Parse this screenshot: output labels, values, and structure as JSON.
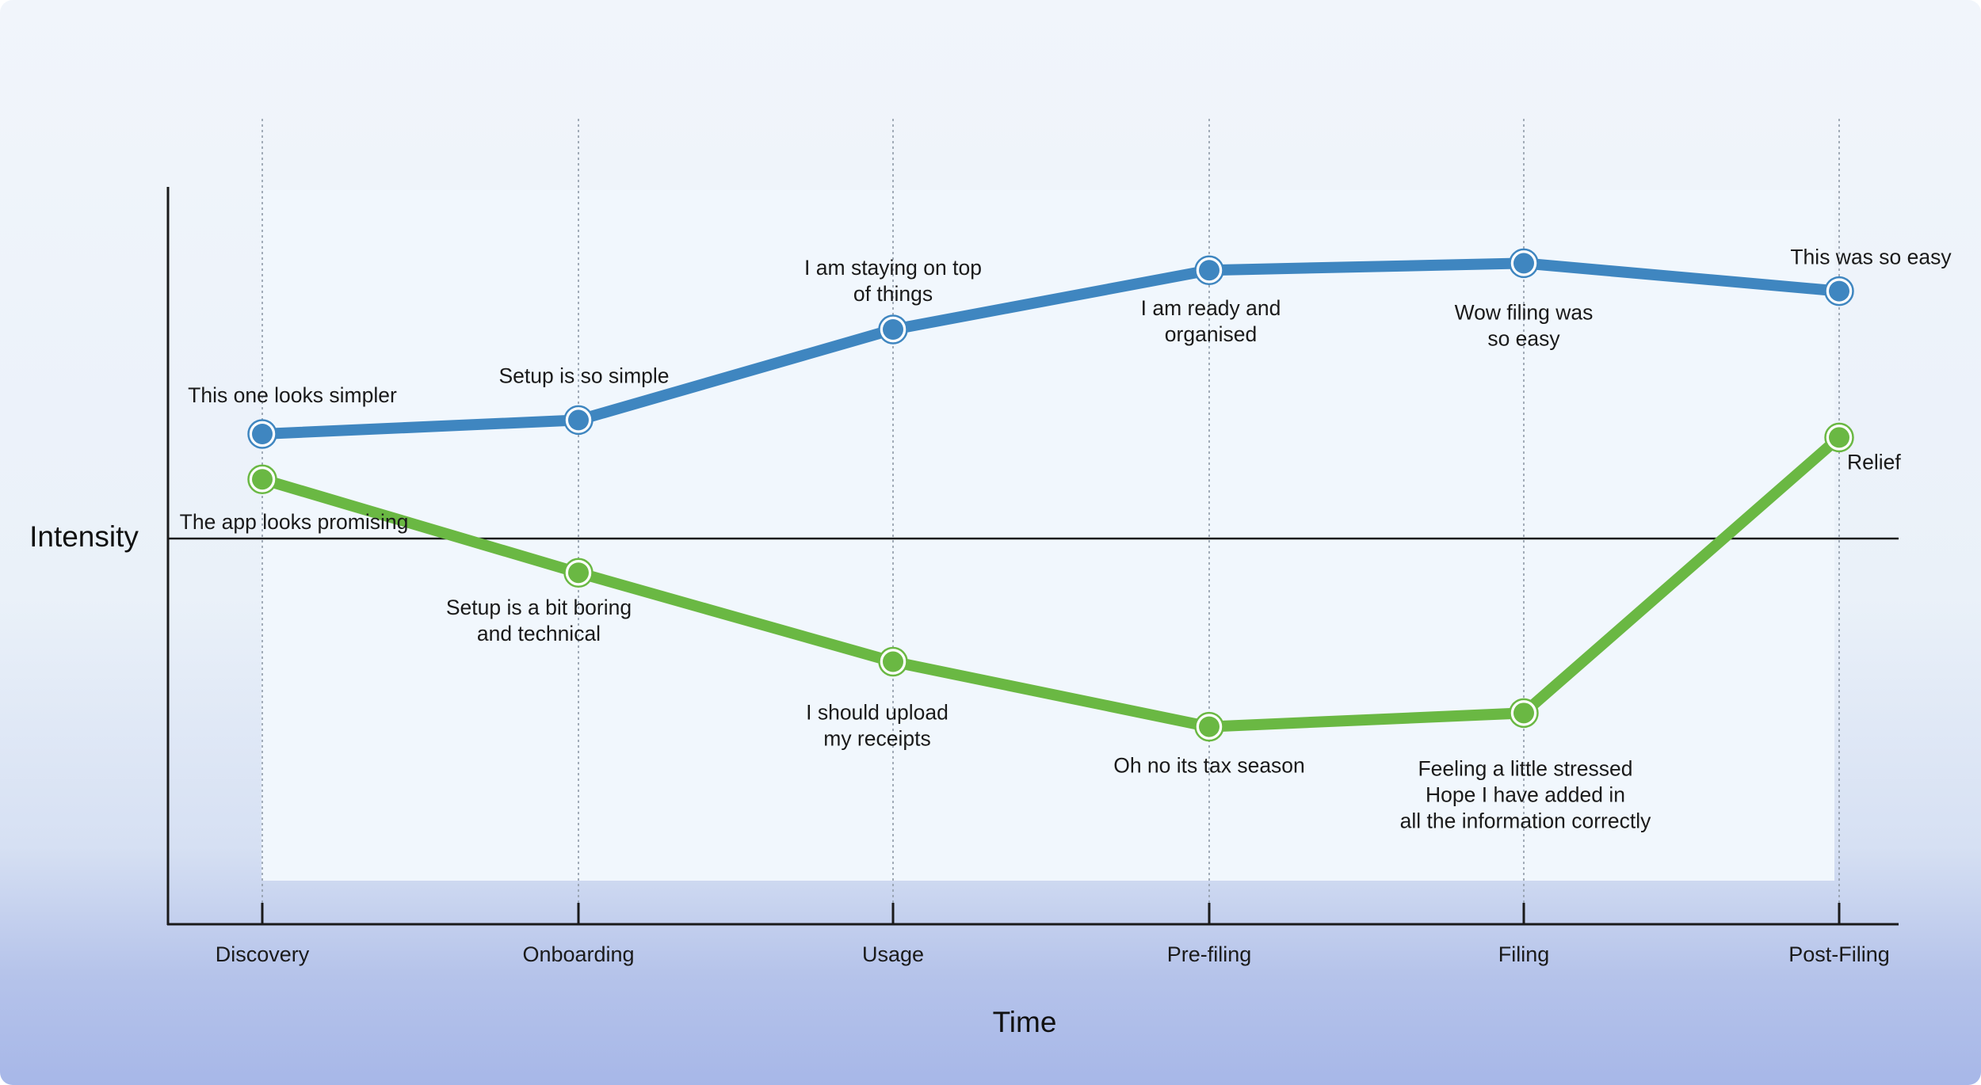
{
  "chart_data": {
    "type": "line",
    "title": "",
    "xlabel": "Time",
    "ylabel": "Intensity",
    "categories": [
      "Discovery",
      "Onboarding",
      "Usage",
      "Pre-filing",
      "Filing",
      "Post-Filing"
    ],
    "ylim": [
      -100,
      100
    ],
    "grid": "vertical dotted lines at each stage",
    "legend": "none",
    "series": [
      {
        "color": "#3f86c0",
        "values": [
          30,
          34,
          60,
          77,
          79,
          71
        ],
        "annotations": [
          [
            "This one looks simpler"
          ],
          [
            "Setup is so simple"
          ],
          [
            "I am staying on top",
            "of things"
          ],
          [
            "I am ready and",
            "organised"
          ],
          [
            "Wow filing was",
            "so easy"
          ],
          [
            "This was so easy"
          ]
        ]
      },
      {
        "color": "#6ab843",
        "values": [
          17,
          -10,
          -36,
          -55,
          -51,
          29
        ],
        "annotations": [
          [
            "The app looks promising"
          ],
          [
            "Setup is a bit boring",
            "and technical"
          ],
          [
            "I should upload",
            "my receipts"
          ],
          [
            "Oh no its tax season"
          ],
          [
            "Feeling a little stressed",
            "Hope I have added in",
            "all the information correctly"
          ],
          [
            "Relief"
          ]
        ]
      }
    ]
  }
}
